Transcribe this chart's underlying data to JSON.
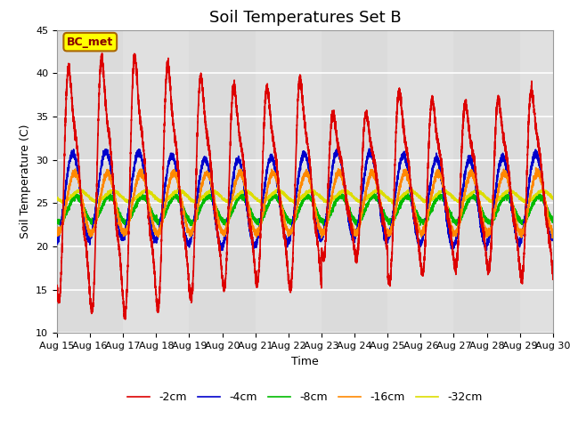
{
  "title": "Soil Temperatures Set B",
  "xlabel": "Time",
  "ylabel": "Soil Temperature (C)",
  "ylim": [
    10,
    45
  ],
  "xlim": [
    0,
    15
  ],
  "x_tick_labels": [
    "Aug 15",
    "Aug 16",
    "Aug 17",
    "Aug 18",
    "Aug 19",
    "Aug 20",
    "Aug 21",
    "Aug 22",
    "Aug 23",
    "Aug 24",
    "Aug 25",
    "Aug 26",
    "Aug 27",
    "Aug 28",
    "Aug 29",
    "Aug 30"
  ],
  "series": {
    "-2cm": {
      "color": "#dd0000",
      "linewidth": 1.2
    },
    "-4cm": {
      "color": "#0000cc",
      "linewidth": 1.2
    },
    "-8cm": {
      "color": "#00bb00",
      "linewidth": 1.2
    },
    "-16cm": {
      "color": "#ff8800",
      "linewidth": 1.2
    },
    "-32cm": {
      "color": "#dddd00",
      "linewidth": 1.2
    }
  },
  "annotation_text": "BC_met",
  "annotation_bg": "#ffff00",
  "annotation_border": "#aa6600",
  "plot_bg": "#e0e0e0",
  "grid_color": "#ffffff",
  "title_fontsize": 13,
  "label_fontsize": 9,
  "tick_fontsize": 8,
  "legend_fontsize": 9,
  "yticks": [
    10,
    15,
    20,
    25,
    30,
    35,
    40,
    45
  ]
}
